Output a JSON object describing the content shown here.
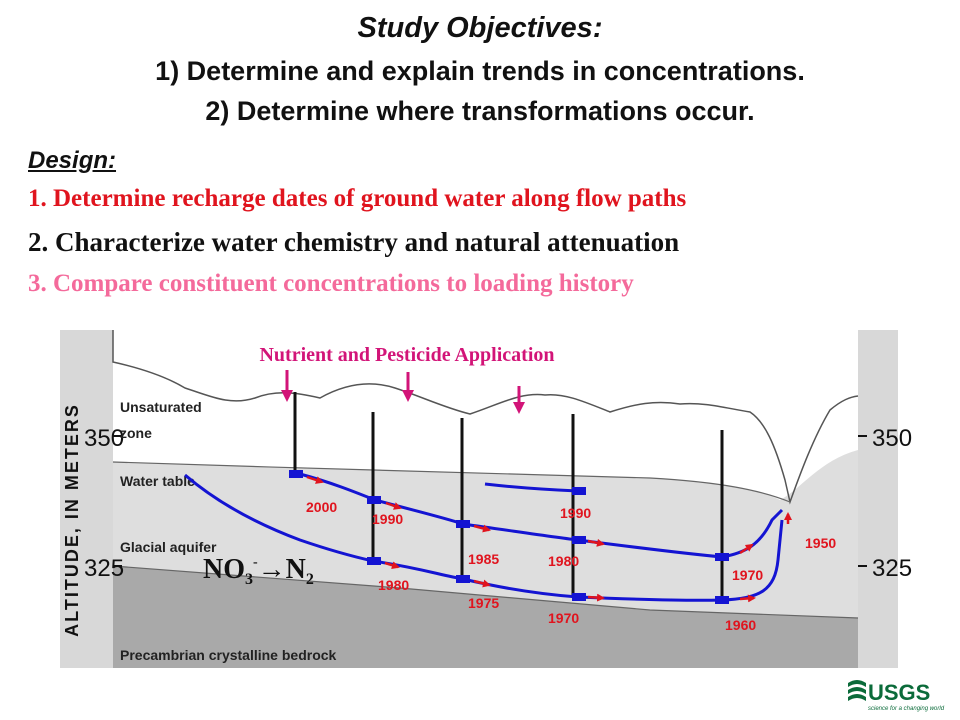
{
  "objectives": {
    "title": "Study Objectives:",
    "line1": "1) Determine and explain trends in concentrations.",
    "line2": "2) Determine where transformations occur."
  },
  "design": {
    "title": "Design:",
    "items": [
      "1. Determine recharge dates of ground water along flow paths",
      "2. Characterize water chemistry and natural attenuation",
      "3. Compare constituent concentrations to loading history"
    ]
  },
  "diagram": {
    "application_label": "Nutrient and Pesticide Application",
    "axis_label": "ALTITUDE, IN METERS",
    "ticks_left": [
      "350",
      "325"
    ],
    "ticks_right": [
      "350",
      "325"
    ],
    "zones": {
      "unsaturated": [
        "Unsaturated",
        "zone"
      ],
      "water_table": "Water table",
      "aquifer": "Glacial aquifer",
      "bedrock": "Precambrian crystalline bedrock"
    },
    "reaction": {
      "a": "NO",
      "sub3": "3",
      "sup": "-",
      "arrow": "→N",
      "sub2": "2"
    },
    "years": [
      "2000",
      "1990",
      "1980",
      "1985",
      "1975",
      "1990",
      "1980",
      "1970",
      "1970",
      "1960",
      "1950"
    ],
    "colors": {
      "flowline": "#1414d2",
      "arrow": "#e0141e",
      "year": "#e0141e",
      "application": "#d21478",
      "accent": "#1414d2"
    }
  },
  "logo": {
    "text": "USGS",
    "tagline": "science for a changing world"
  }
}
